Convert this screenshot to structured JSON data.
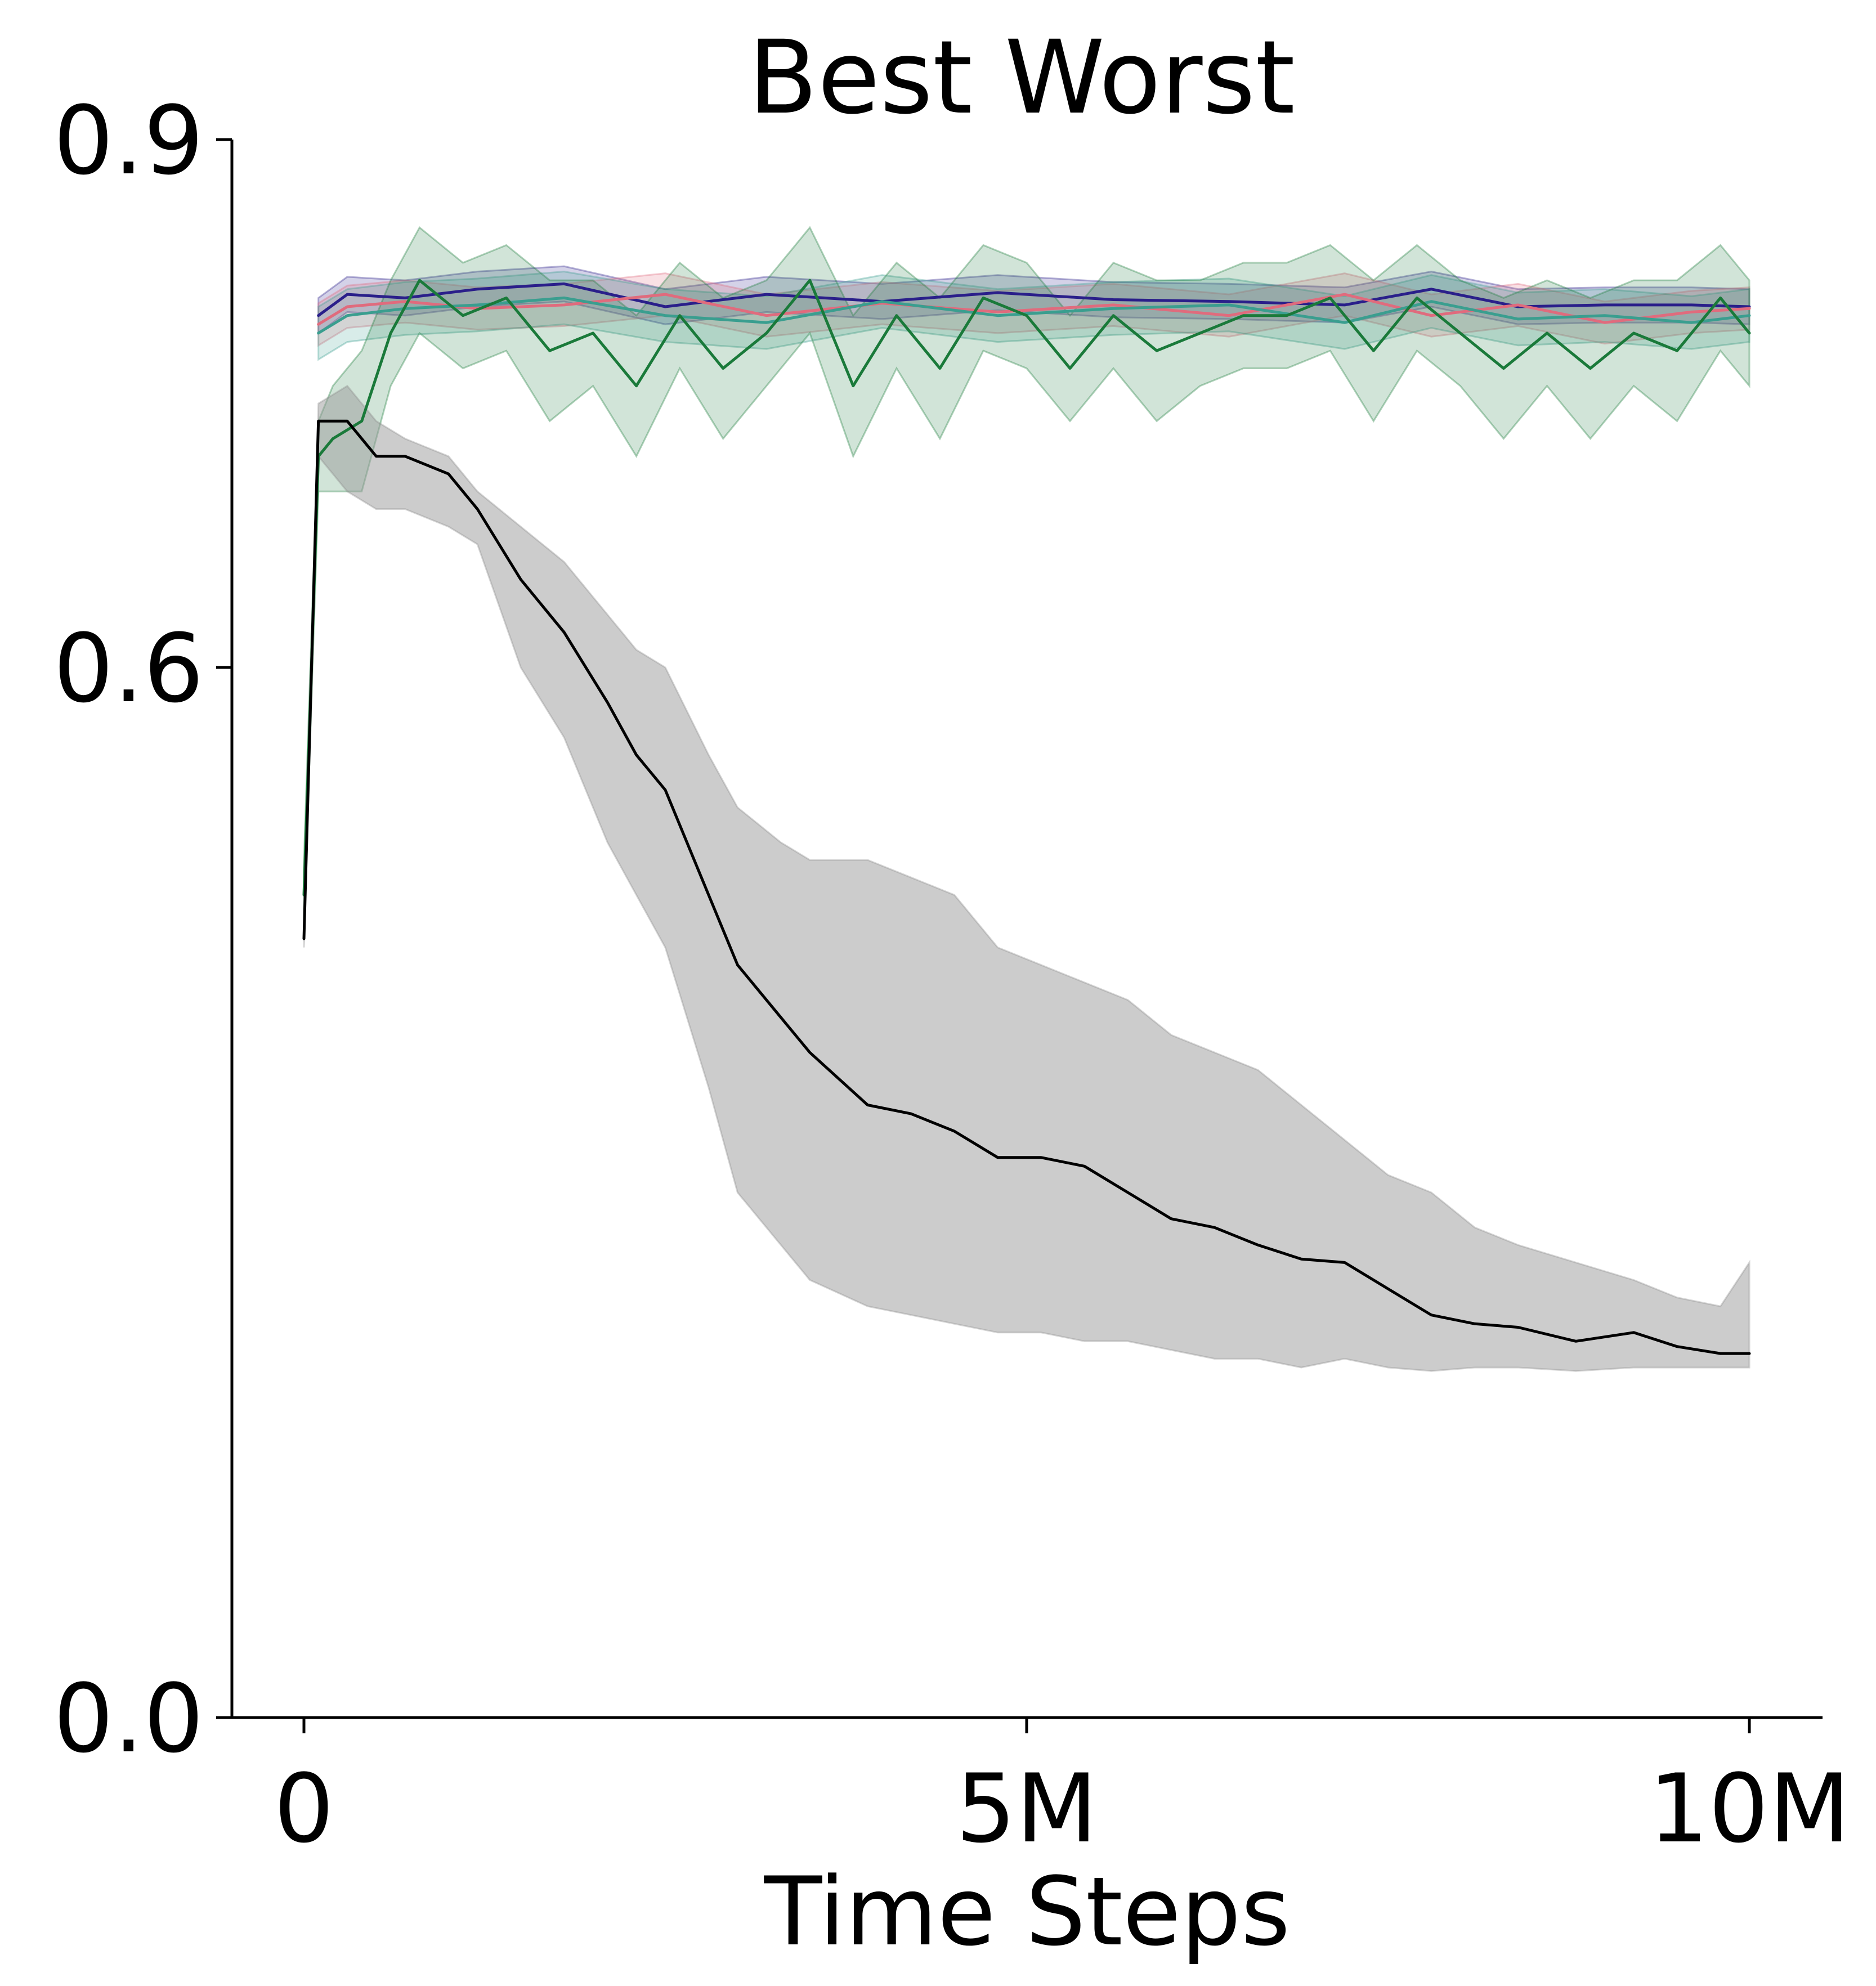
{
  "chart_data": {
    "type": "line",
    "title": "Best Worst",
    "xlabel": "Time Steps",
    "ylabel": "",
    "xlim": [
      -500000,
      10500000
    ],
    "ylim": [
      0,
      0.9
    ],
    "y_scale": "nonuniform",
    "x_ticks": [
      {
        "value": 0,
        "label": "0"
      },
      {
        "value": 5000000,
        "label": "5M"
      },
      {
        "value": 10000000,
        "label": "10M"
      }
    ],
    "y_ticks": [
      {
        "value": 0.0,
        "label": "0.0"
      },
      {
        "value": 0.6,
        "label": "0.6"
      },
      {
        "value": 0.9,
        "label": "0.9"
      }
    ],
    "grid": false,
    "legend": "none",
    "series": [
      {
        "color": "#2a1f8a",
        "x": [
          100000,
          300000,
          700000,
          1200000,
          1800000,
          2500000,
          3200000,
          4000000,
          4800000,
          5600000,
          6400000,
          7200000,
          7800000,
          8400000,
          9000000,
          9600000,
          10000000
        ],
        "y": [
          0.8,
          0.812,
          0.81,
          0.815,
          0.818,
          0.805,
          0.812,
          0.808,
          0.813,
          0.809,
          0.808,
          0.806,
          0.815,
          0.805,
          0.806,
          0.806,
          0.805
        ],
        "band": {
          "upper": [
            0.81,
            0.822,
            0.82,
            0.825,
            0.828,
            0.815,
            0.822,
            0.818,
            0.823,
            0.819,
            0.818,
            0.816,
            0.825,
            0.815,
            0.816,
            0.816,
            0.815
          ],
          "lower": [
            0.79,
            0.802,
            0.8,
            0.805,
            0.808,
            0.795,
            0.802,
            0.798,
            0.803,
            0.799,
            0.798,
            0.796,
            0.805,
            0.795,
            0.796,
            0.796,
            0.795
          ]
        }
      },
      {
        "color": "#e06b7d",
        "x": [
          100000,
          300000,
          700000,
          1200000,
          1800000,
          2500000,
          3200000,
          4000000,
          4800000,
          5600000,
          6400000,
          7200000,
          7800000,
          8400000,
          9000000,
          9600000,
          10000000
        ],
        "y": [
          0.795,
          0.805,
          0.808,
          0.804,
          0.806,
          0.812,
          0.8,
          0.807,
          0.802,
          0.806,
          0.8,
          0.812,
          0.8,
          0.806,
          0.796,
          0.802,
          0.804
        ],
        "band": {
          "upper": [
            0.807,
            0.817,
            0.82,
            0.816,
            0.818,
            0.824,
            0.812,
            0.819,
            0.814,
            0.818,
            0.812,
            0.824,
            0.812,
            0.818,
            0.808,
            0.814,
            0.816
          ],
          "lower": [
            0.783,
            0.793,
            0.796,
            0.792,
            0.794,
            0.8,
            0.788,
            0.795,
            0.79,
            0.794,
            0.788,
            0.8,
            0.788,
            0.794,
            0.784,
            0.79,
            0.792
          ]
        }
      },
      {
        "color": "#3a9e8f",
        "x": [
          100000,
          300000,
          700000,
          1200000,
          1800000,
          2500000,
          3200000,
          4000000,
          4800000,
          5600000,
          6400000,
          7200000,
          7800000,
          8400000,
          9000000,
          9600000,
          10000000
        ],
        "y": [
          0.79,
          0.8,
          0.804,
          0.806,
          0.81,
          0.8,
          0.796,
          0.808,
          0.8,
          0.804,
          0.806,
          0.796,
          0.808,
          0.798,
          0.8,
          0.796,
          0.8
        ],
        "band": {
          "upper": [
            0.805,
            0.815,
            0.819,
            0.821,
            0.825,
            0.815,
            0.811,
            0.823,
            0.815,
            0.819,
            0.821,
            0.811,
            0.823,
            0.813,
            0.815,
            0.811,
            0.815
          ],
          "lower": [
            0.775,
            0.785,
            0.789,
            0.791,
            0.795,
            0.785,
            0.781,
            0.793,
            0.785,
            0.789,
            0.791,
            0.781,
            0.793,
            0.783,
            0.785,
            0.781,
            0.785
          ]
        }
      },
      {
        "color": "#1a7a3a",
        "x": [
          0,
          100000,
          200000,
          400000,
          600000,
          800000,
          1100000,
          1400000,
          1700000,
          2000000,
          2300000,
          2600000,
          2900000,
          3200000,
          3500000,
          3800000,
          4100000,
          4400000,
          4700000,
          5000000,
          5300000,
          5600000,
          5900000,
          6200000,
          6500000,
          6800000,
          7100000,
          7400000,
          7700000,
          8000000,
          8300000,
          8600000,
          8900000,
          9200000,
          9500000,
          9800000,
          10000000
        ],
        "y": [
          0.47,
          0.72,
          0.73,
          0.74,
          0.79,
          0.82,
          0.8,
          0.81,
          0.78,
          0.79,
          0.76,
          0.8,
          0.77,
          0.79,
          0.82,
          0.76,
          0.8,
          0.77,
          0.81,
          0.8,
          0.77,
          0.8,
          0.78,
          0.79,
          0.8,
          0.8,
          0.81,
          0.78,
          0.81,
          0.79,
          0.77,
          0.79,
          0.77,
          0.79,
          0.78,
          0.81,
          0.79
        ],
        "band": {
          "upper": [
            0.49,
            0.74,
            0.76,
            0.78,
            0.82,
            0.85,
            0.83,
            0.84,
            0.82,
            0.82,
            0.8,
            0.83,
            0.81,
            0.82,
            0.85,
            0.8,
            0.83,
            0.81,
            0.84,
            0.83,
            0.8,
            0.83,
            0.82,
            0.82,
            0.83,
            0.83,
            0.84,
            0.82,
            0.84,
            0.82,
            0.81,
            0.82,
            0.81,
            0.82,
            0.82,
            0.84,
            0.82
          ],
          "lower": [
            0.45,
            0.7,
            0.7,
            0.7,
            0.76,
            0.79,
            0.77,
            0.78,
            0.74,
            0.76,
            0.72,
            0.77,
            0.73,
            0.76,
            0.79,
            0.72,
            0.77,
            0.73,
            0.78,
            0.77,
            0.74,
            0.77,
            0.74,
            0.76,
            0.77,
            0.77,
            0.78,
            0.74,
            0.78,
            0.76,
            0.73,
            0.76,
            0.73,
            0.76,
            0.74,
            0.78,
            0.76
          ]
        }
      },
      {
        "color": "#000000",
        "x": [
          0,
          100000,
          300000,
          500000,
          700000,
          1000000,
          1200000,
          1500000,
          1800000,
          2100000,
          2300000,
          2500000,
          2800000,
          3000000,
          3300000,
          3500000,
          3900000,
          4200000,
          4500000,
          4800000,
          5100000,
          5400000,
          5700000,
          6000000,
          6300000,
          6600000,
          6900000,
          7200000,
          7500000,
          7800000,
          8100000,
          8400000,
          8800000,
          9200000,
          9500000,
          9800000,
          10000000
        ],
        "y": [
          0.445,
          0.74,
          0.74,
          0.72,
          0.72,
          0.71,
          0.69,
          0.65,
          0.62,
          0.58,
          0.55,
          0.53,
          0.47,
          0.43,
          0.4,
          0.38,
          0.35,
          0.345,
          0.335,
          0.32,
          0.32,
          0.315,
          0.3,
          0.285,
          0.28,
          0.27,
          0.262,
          0.26,
          0.245,
          0.23,
          0.225,
          0.223,
          0.215,
          0.22,
          0.212,
          0.208,
          0.208
        ],
        "band": {
          "upper": [
            0.45,
            0.75,
            0.76,
            0.74,
            0.73,
            0.72,
            0.7,
            0.68,
            0.66,
            0.63,
            0.61,
            0.6,
            0.55,
            0.52,
            0.5,
            0.49,
            0.49,
            0.48,
            0.47,
            0.44,
            0.43,
            0.42,
            0.41,
            0.39,
            0.38,
            0.37,
            0.35,
            0.33,
            0.31,
            0.3,
            0.28,
            0.27,
            0.26,
            0.25,
            0.24,
            0.235,
            0.26
          ],
          "lower": [
            0.44,
            0.72,
            0.7,
            0.69,
            0.69,
            0.68,
            0.67,
            0.6,
            0.56,
            0.5,
            0.47,
            0.44,
            0.36,
            0.3,
            0.27,
            0.25,
            0.235,
            0.23,
            0.225,
            0.22,
            0.22,
            0.215,
            0.215,
            0.21,
            0.205,
            0.205,
            0.2,
            0.205,
            0.2,
            0.198,
            0.2,
            0.2,
            0.198,
            0.2,
            0.2,
            0.2,
            0.2
          ]
        }
      }
    ]
  }
}
